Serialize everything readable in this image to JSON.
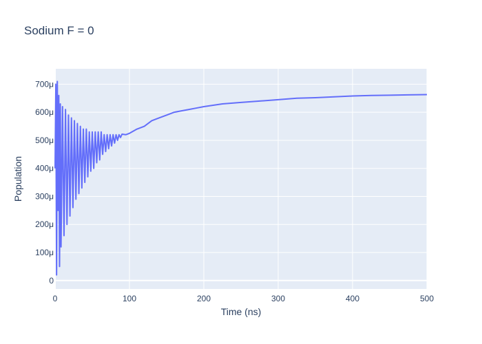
{
  "chart_data": {
    "type": "line",
    "title": "Sodium F = 0",
    "xlabel": "Time (ns)",
    "ylabel": "Population",
    "xlim": [
      0,
      500
    ],
    "ylim": [
      -3e-05,
      0.000755
    ],
    "x_ticks": [
      0,
      100,
      200,
      300,
      400,
      500
    ],
    "x_tick_labels": [
      "0",
      "100",
      "200",
      "300",
      "400",
      "500"
    ],
    "y_ticks": [
      0,
      0.0001,
      0.0002,
      0.0003,
      0.0004,
      0.0005,
      0.0006,
      0.0007
    ],
    "y_tick_labels": [
      "0",
      "100μ",
      "200μ",
      "300μ",
      "400μ",
      "500μ",
      "600μ",
      "700μ"
    ],
    "grid": true,
    "colors": {
      "line": "#636efa",
      "plot_bg": "#e5ecf6",
      "grid": "#ffffff",
      "text": "#2a3f5f"
    },
    "series": [
      {
        "x": [
          0,
          1,
          2,
          3,
          4,
          5,
          6,
          7,
          8,
          10,
          12,
          14,
          16,
          18,
          20,
          22,
          24,
          26,
          28,
          30,
          32,
          34,
          36,
          38,
          40,
          42,
          44,
          46,
          48,
          50,
          52,
          54,
          56,
          58,
          60,
          62,
          64,
          66,
          68,
          70,
          72,
          74,
          76,
          78,
          80,
          82,
          84,
          86,
          88,
          90,
          95,
          100,
          110,
          120,
          130,
          140,
          150,
          160,
          170,
          180,
          190,
          200,
          225,
          250,
          275,
          300,
          325,
          350,
          375,
          400,
          425,
          450,
          475,
          500
        ],
        "y": [
          0.0004,
          0.0007,
          2e-05,
          0.00071,
          0.00025,
          0.00066,
          5e-05,
          0.00063,
          0.00012,
          0.00062,
          0.00016,
          0.00061,
          0.0002,
          0.00059,
          0.00023,
          0.00058,
          0.00026,
          0.00057,
          0.00029,
          0.00056,
          0.00031,
          0.00055,
          0.00033,
          0.00054,
          0.00035,
          0.00054,
          0.00037,
          0.00053,
          0.00039,
          0.00053,
          0.0004,
          0.00053,
          0.00042,
          0.00053,
          0.00043,
          0.00053,
          0.00045,
          0.00052,
          0.00046,
          0.00052,
          0.00047,
          0.00052,
          0.00048,
          0.00052,
          0.00049,
          0.00052,
          0.0005,
          0.00052,
          0.00051,
          0.000522,
          0.00052,
          0.000525,
          0.00054,
          0.00055,
          0.00057,
          0.00058,
          0.00059,
          0.0006,
          0.000605,
          0.00061,
          0.000615,
          0.00062,
          0.00063,
          0.000635,
          0.00064,
          0.000645,
          0.00065,
          0.000652,
          0.000655,
          0.000658,
          0.00066,
          0.000661,
          0.000662,
          0.000663
        ]
      }
    ]
  }
}
